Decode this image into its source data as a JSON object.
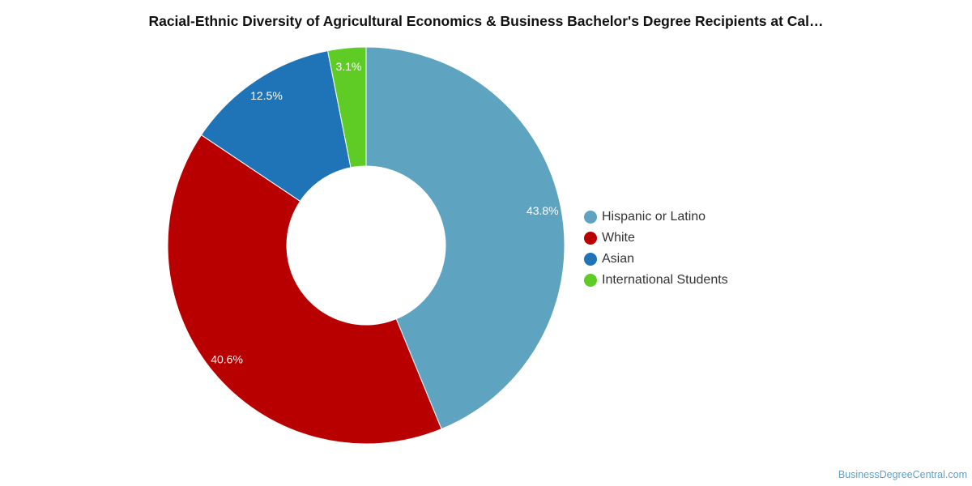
{
  "title": "Racial-Ethnic Diversity of Agricultural Economics & Business Bachelor's Degree Recipients at Cal…",
  "watermark": "BusinessDegreeCentral.com",
  "chart_data": {
    "type": "pie",
    "variant": "donut",
    "title": "Racial-Ethnic Diversity of Agricultural Economics & Business Bachelor's Degree Recipients at Cal…",
    "legend_position": "right",
    "slices": [
      {
        "label": "Hispanic or Latino",
        "value": 43.8,
        "display": "43.8%",
        "color": "#5ea3c0"
      },
      {
        "label": "White",
        "value": 40.6,
        "display": "40.6%",
        "color": "#b80000"
      },
      {
        "label": "Asian",
        "value": 12.5,
        "display": "12.5%",
        "color": "#1f74b8"
      },
      {
        "label": "International Students",
        "value": 3.1,
        "display": "3.1%",
        "color": "#5fcc26"
      }
    ]
  }
}
